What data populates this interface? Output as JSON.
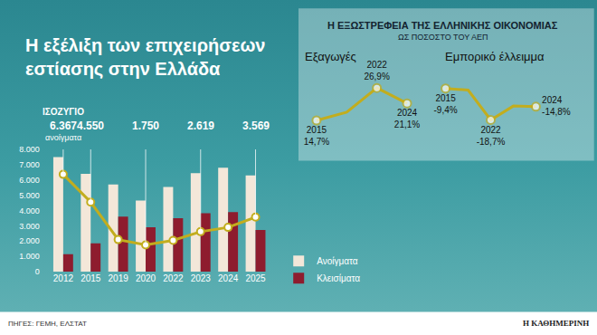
{
  "chart_data": [
    {
      "type": "bar",
      "title": "Η εξέλιξη των επιχειρήσεων\nεστίασης στην Ελλάδα",
      "categories": [
        "2012",
        "2015",
        "2019",
        "2020",
        "2022",
        "2023",
        "2024",
        "2025"
      ],
      "series": [
        {
          "name": "Ανοίγματα",
          "color": "#f3e7d9",
          "values": [
            7500,
            6400,
            5700,
            4650,
            5550,
            6450,
            6800,
            6300
          ]
        },
        {
          "name": "Κλεισίματα",
          "color": "#8e1c2e",
          "values": [
            1150,
            1850,
            3600,
            2900,
            3500,
            3830,
            3900,
            2730
          ]
        },
        {
          "name": "ΙΣΟΖΥΓΙΟ",
          "type": "line",
          "color": "#c2ad1e",
          "marker": "circle",
          "data_labels": true,
          "values": [
            6367,
            4550,
            2100,
            1750,
            2050,
            2619,
            2900,
            3569
          ],
          "value_labels": [
            "6.367",
            "4.550",
            null,
            "1.750",
            null,
            "2.619",
            null,
            "3.569"
          ]
        }
      ],
      "annotations": [
        {
          "text": "ανοίγματα",
          "category": "2012"
        }
      ],
      "ylim": [
        0,
        8000
      ],
      "yticks": [
        0,
        {
          "value": 1000,
          "label": "1.000"
        },
        {
          "value": 2000,
          "label": "2.000"
        },
        {
          "value": 3000,
          "label": "3.000"
        },
        {
          "value": 4000,
          "label": "4.000"
        },
        {
          "value": 5000,
          "label": "5.000"
        },
        {
          "value": 6000,
          "label": "6.000"
        },
        {
          "value": 7000,
          "label": "7.000"
        },
        {
          "value": 8000,
          "label": "8.000"
        }
      ],
      "grid": false,
      "legend": "lower right"
    },
    {
      "type": "line",
      "title": "Εξαγωγές",
      "categories": [
        "2015",
        null,
        "2022",
        "2024"
      ],
      "values": [
        14.7,
        17.8,
        26.9,
        21.1
      ],
      "value_labels": [
        "14,7%",
        null,
        "26,9%",
        "21,1%"
      ],
      "color": "#c2ad1e",
      "marker": "circle",
      "ylim": [
        14,
        27.6
      ],
      "tick_labels": false,
      "data_labels": true
    },
    {
      "type": "line",
      "title": "Εμπορικό έλλειμμα",
      "categories": [
        "2015",
        null,
        "2022",
        null,
        "2024"
      ],
      "values": [
        -9.4,
        -9.9,
        -18.7,
        -14.6,
        -14.8
      ],
      "value_labels": [
        "-9,4%",
        null,
        "-18,7%",
        null,
        "-14,8%"
      ],
      "color": "#c2ad1e",
      "marker": "circle",
      "ylim": [
        -19.4,
        -8.7
      ],
      "tick_labels": false,
      "data_labels": true
    }
  ],
  "panel": {
    "title": "Η ΕΞΩΣΤΡΕΦΕΙΑ ΤΗΣ ΕΛΛΗΝΙΚΗΣ ΟΙΚΟΝΟΜΙΑΣ",
    "subtitle": "ΩΣ ΠΟΣΟΣΤΟ ΤΟΥ ΑΕΠ"
  },
  "source": "ΠΗΓΕΣ: ΓΕΜΗ, ΕΛΣΤΑΤ",
  "credit": "Η ΚΑΘΗΜΕΡΙΝΗ"
}
